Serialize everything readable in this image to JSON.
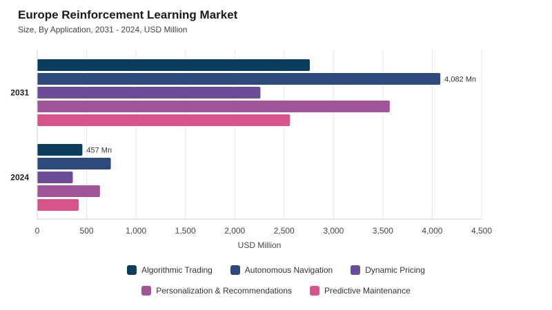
{
  "header": {
    "title": "Europe Reinforcement Learning Market",
    "subtitle": "Size, By Application, 2031 - 2024, USD Million"
  },
  "chart_data": {
    "type": "bar",
    "orientation": "horizontal",
    "categories": [
      "2031",
      "2024"
    ],
    "series": [
      {
        "name": "Algorithmic Trading",
        "color": "#0b3d5c",
        "values": [
          2760,
          457
        ]
      },
      {
        "name": "Autonomous Navigation",
        "color": "#2e4a7d",
        "values": [
          4082,
          745
        ]
      },
      {
        "name": "Dynamic Pricing",
        "color": "#6a4d96",
        "values": [
          2260,
          360
        ]
      },
      {
        "name": "Personalization & Recommendations",
        "color": "#a0559a",
        "values": [
          3570,
          635
        ]
      },
      {
        "name": "Predictive Maintenance",
        "color": "#d9548a",
        "values": [
          2560,
          420
        ]
      }
    ],
    "data_labels": [
      {
        "category": "2031",
        "series": "Autonomous Navigation",
        "text": "4,082 Mn"
      },
      {
        "category": "2024",
        "series": "Algorithmic Trading",
        "text": "457 Mn"
      }
    ],
    "xlim": [
      0,
      4500
    ],
    "xticks": [
      0,
      500,
      1000,
      1500,
      2000,
      2500,
      3000,
      3500,
      4000,
      4500
    ],
    "xtick_labels": [
      "0",
      "500",
      "1,000",
      "1,500",
      "2,000",
      "2,500",
      "3,000",
      "3,500",
      "4,000",
      "4,500"
    ],
    "xlabel": "USD Million",
    "grid": "vertical",
    "legend": "bottom"
  }
}
